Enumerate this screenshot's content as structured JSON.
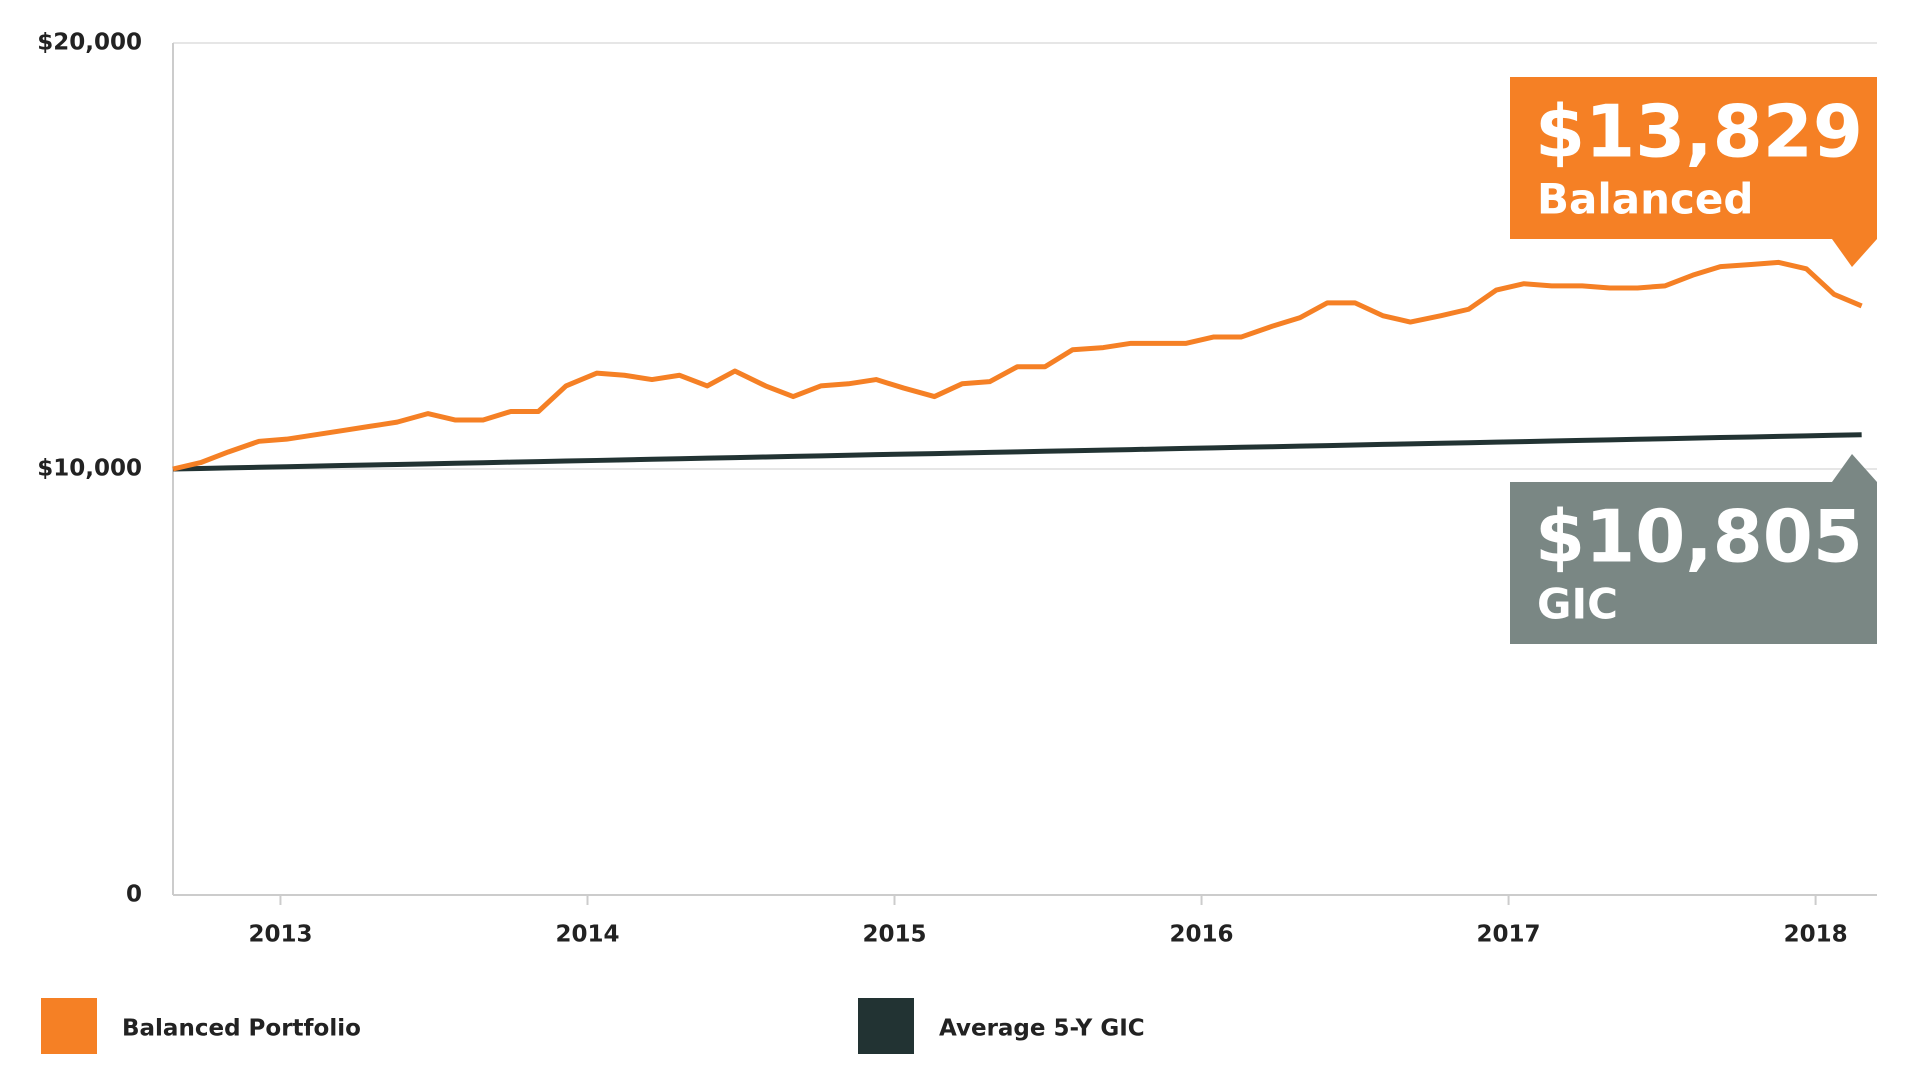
{
  "chart_data": {
    "type": "line",
    "x": [
      2012.65,
      2012.74,
      2012.83,
      2012.93,
      2013.02,
      2013.11,
      2013.2,
      2013.29,
      2013.38,
      2013.48,
      2013.57,
      2013.66,
      2013.75,
      2013.84,
      2013.93,
      2014.03,
      2014.12,
      2014.21,
      2014.3,
      2014.39,
      2014.48,
      2014.58,
      2014.67,
      2014.76,
      2014.85,
      2014.94,
      2015.03,
      2015.13,
      2015.22,
      2015.31,
      2015.4,
      2015.49,
      2015.58,
      2015.68,
      2015.77,
      2015.86,
      2015.95,
      2016.04,
      2016.13,
      2016.23,
      2016.32,
      2016.41,
      2016.5,
      2016.59,
      2016.68,
      2016.78,
      2016.87,
      2016.96,
      2017.05,
      2017.14,
      2017.24,
      2017.33,
      2017.42,
      2017.51,
      2017.6,
      2017.69,
      2017.79,
      2017.88,
      2017.97,
      2018.06,
      2018.15
    ],
    "series": [
      {
        "name": "Balanced Portfolio",
        "color": "#f58025",
        "values": [
          10000,
          10150,
          10400,
          10650,
          10700,
          10800,
          10900,
          11000,
          11100,
          11300,
          11150,
          11150,
          11350,
          11350,
          11950,
          12250,
          12200,
          12100,
          12200,
          11950,
          12300,
          11950,
          11700,
          11950,
          12000,
          12100,
          11900,
          11700,
          12000,
          12050,
          12400,
          12400,
          12800,
          12850,
          12950,
          12950,
          12950,
          13100,
          13100,
          13350,
          13550,
          13900,
          13900,
          13600,
          13450,
          13600,
          13750,
          14200,
          14350,
          14300,
          14300,
          14250,
          14250,
          14300,
          14550,
          14750,
          14800,
          14850,
          14700,
          14100,
          13829
        ]
      },
      {
        "name": "Average 5-Y GIC",
        "color": "#223333",
        "values": [
          10000,
          10013,
          10027,
          10040,
          10054,
          10067,
          10081,
          10094,
          10107,
          10121,
          10134,
          10148,
          10161,
          10174,
          10188,
          10201,
          10215,
          10228,
          10242,
          10255,
          10268,
          10282,
          10295,
          10309,
          10322,
          10336,
          10349,
          10362,
          10376,
          10389,
          10403,
          10416,
          10429,
          10443,
          10456,
          10470,
          10483,
          10497,
          10510,
          10523,
          10537,
          10550,
          10564,
          10577,
          10590,
          10604,
          10617,
          10631,
          10644,
          10658,
          10671,
          10684,
          10698,
          10711,
          10725,
          10738,
          10751,
          10765,
          10778,
          10792,
          10805
        ]
      }
    ],
    "callouts": [
      {
        "value": "$13,829",
        "label": "Balanced",
        "color": "#f58025"
      },
      {
        "value": "$10,805",
        "label": "GIC",
        "color": "#7a8784"
      }
    ],
    "xlim": [
      2012.65,
      2018.2
    ],
    "xticks": [
      2013,
      2014,
      2015,
      2016,
      2017,
      2018
    ],
    "ylim": [
      0,
      20000
    ],
    "yticks": [
      0,
      {
        "value": 10000,
        "label": "$10,000"
      },
      {
        "value": 20000,
        "label": "$20,000"
      }
    ],
    "grid": true
  }
}
